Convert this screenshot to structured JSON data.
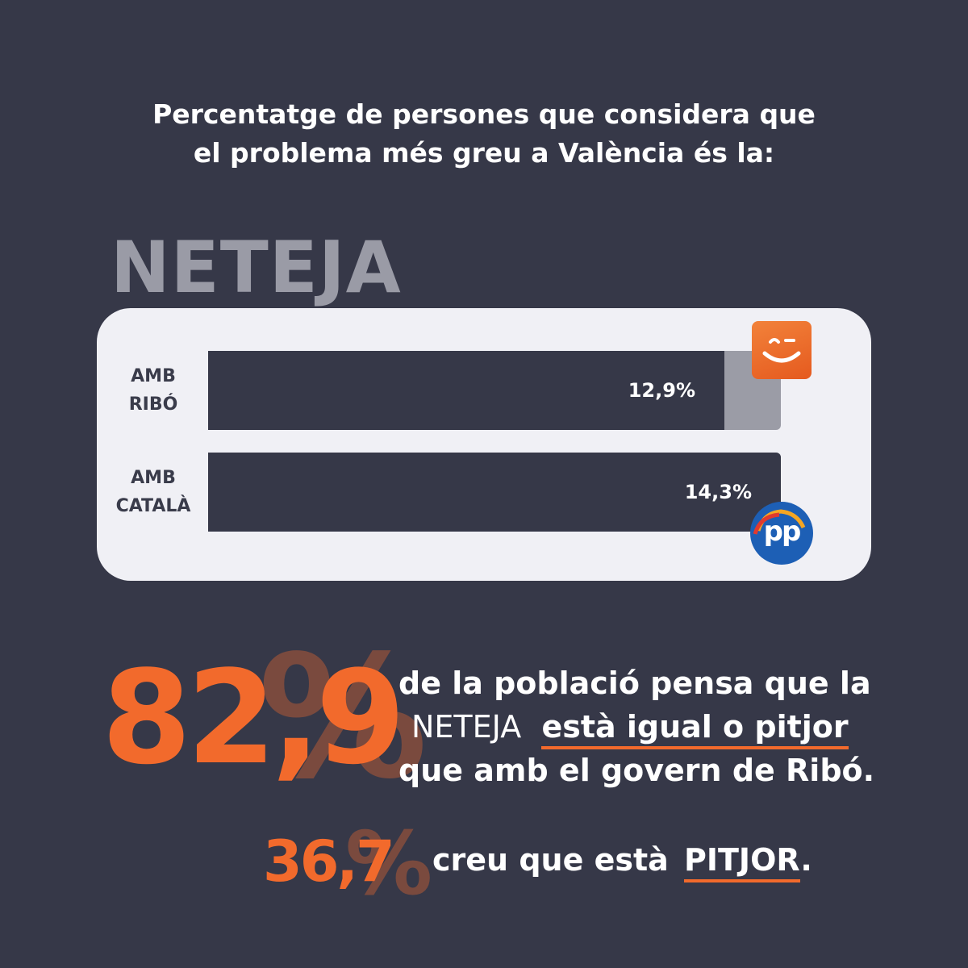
{
  "headline": {
    "line1": "Percentatge de persones que considera que",
    "line2": "el problema més greu a València és la:"
  },
  "category": "NETEJA",
  "colors": {
    "background": "#363848",
    "panel": "#f0f0f5",
    "bar_fill": "#363848",
    "bar_track": "#9b9ca6",
    "accent": "#f26a2c",
    "percent_shadow": "#7a4a3e"
  },
  "chart_data": {
    "type": "bar",
    "orientation": "horizontal",
    "title": "Percentatge de persones que considera que el problema més greu a València és la: NETEJA",
    "categories": [
      "AMB RIBÓ",
      "AMB CATALÀ"
    ],
    "category_lines": [
      [
        "AMB",
        "RIBÓ"
      ],
      [
        "AMB",
        "CATALÀ"
      ]
    ],
    "values": [
      12.9,
      14.3
    ],
    "value_labels": [
      "12,9%",
      "14,3%"
    ],
    "xlim": [
      0,
      14.3
    ],
    "grid": false,
    "legend": "none"
  },
  "logos": {
    "top_row": "smile-logo-icon",
    "bottom_row_text": "pp"
  },
  "stat1": {
    "number": "82,9",
    "percent": "%",
    "line1": "de la població pensa que la",
    "line2_a": "NETEJA",
    "line2_b": "està igual o pitjor",
    "line3": "que amb el govern de Ribó."
  },
  "stat2": {
    "number": "36,7",
    "percent": "%",
    "text_a": "creu que està",
    "text_b": "PITJOR",
    "text_c": "."
  }
}
